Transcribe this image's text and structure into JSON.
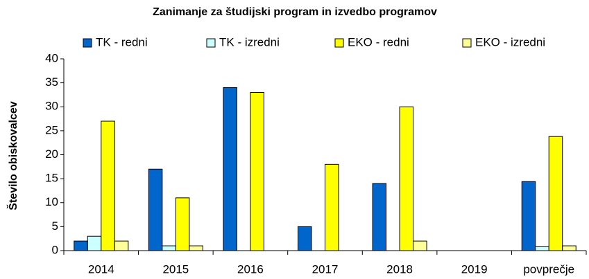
{
  "chart_data": {
    "type": "bar",
    "title": "Zanimanje za študijski program in izvedbo programov",
    "y_label": "Število obiskovalcev",
    "categories": [
      "2014",
      "2015",
      "2016",
      "2017",
      "2018",
      "2019",
      "povprečje"
    ],
    "series": [
      {
        "name": "TK - redni",
        "color": "#0066cc",
        "values": [
          2,
          17,
          34,
          5,
          14,
          0,
          14.4
        ]
      },
      {
        "name": "TK - izredni",
        "color": "#ccffff",
        "values": [
          3,
          1,
          0,
          0,
          0,
          0,
          0.8
        ]
      },
      {
        "name": "EKO - redni",
        "color": "#ffff00",
        "values": [
          27,
          11,
          33,
          18,
          30,
          0,
          23.8
        ]
      },
      {
        "name": "EKO - izredni",
        "color": "#ffff99",
        "values": [
          2,
          1,
          0,
          0,
          2,
          0,
          1
        ]
      }
    ],
    "ylim": [
      0,
      40
    ],
    "yticks": [
      0,
      5,
      10,
      15,
      20,
      25,
      30,
      35,
      40
    ],
    "grid": false,
    "legend": "top"
  }
}
